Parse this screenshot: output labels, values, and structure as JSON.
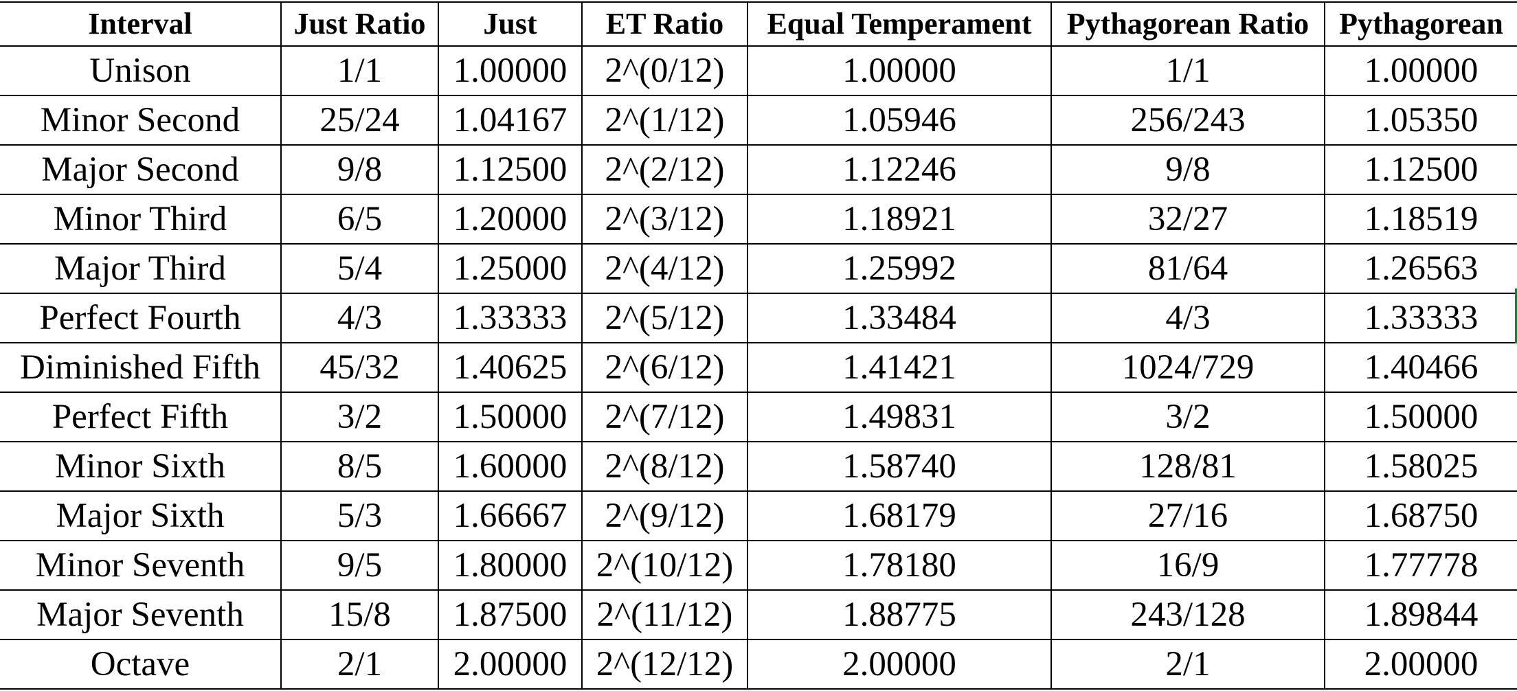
{
  "table": {
    "headers": [
      "Interval",
      "Just Ratio",
      "Just",
      "ET Ratio",
      "Equal Temperament",
      "Pythagorean Ratio",
      "Pythagorean"
    ],
    "rows": [
      [
        "Unison",
        "1/1",
        "1.00000",
        "2^(0/12)",
        "1.00000",
        "1/1",
        "1.00000"
      ],
      [
        "Minor Second",
        "25/24",
        "1.04167",
        "2^(1/12)",
        "1.05946",
        "256/243",
        "1.05350"
      ],
      [
        "Major Second",
        "9/8",
        "1.12500",
        "2^(2/12)",
        "1.12246",
        "9/8",
        "1.12500"
      ],
      [
        "Minor Third",
        "6/5",
        "1.20000",
        "2^(3/12)",
        "1.18921",
        "32/27",
        "1.18519"
      ],
      [
        "Major Third",
        "5/4",
        "1.25000",
        "2^(4/12)",
        "1.25992",
        "81/64",
        "1.26563"
      ],
      [
        "Perfect Fourth",
        "4/3",
        "1.33333",
        "2^(5/12)",
        "1.33484",
        "4/3",
        "1.33333"
      ],
      [
        "Diminished Fifth",
        "45/32",
        "1.40625",
        "2^(6/12)",
        "1.41421",
        "1024/729",
        "1.40466"
      ],
      [
        "Perfect Fifth",
        "3/2",
        "1.50000",
        "2^(7/12)",
        "1.49831",
        "3/2",
        "1.50000"
      ],
      [
        "Minor Sixth",
        "8/5",
        "1.60000",
        "2^(8/12)",
        "1.58740",
        "128/81",
        "1.58025"
      ],
      [
        "Major Sixth",
        "5/3",
        "1.66667",
        "2^(9/12)",
        "1.68179",
        "27/16",
        "1.68750"
      ],
      [
        "Minor Seventh",
        "9/5",
        "1.80000",
        "2^(10/12)",
        "1.78180",
        "16/9",
        "1.77778"
      ],
      [
        "Major Seventh",
        "15/8",
        "1.87500",
        "2^(11/12)",
        "1.88775",
        "243/128",
        "1.89844"
      ],
      [
        "Octave",
        "2/1",
        "2.00000",
        "2^(12/12)",
        "2.00000",
        "2/1",
        "2.00000"
      ]
    ]
  },
  "colors": {
    "grid_line": "#000000",
    "text": "#000000",
    "background": "#ffffff",
    "selection_edge": "#1e7a3a"
  }
}
